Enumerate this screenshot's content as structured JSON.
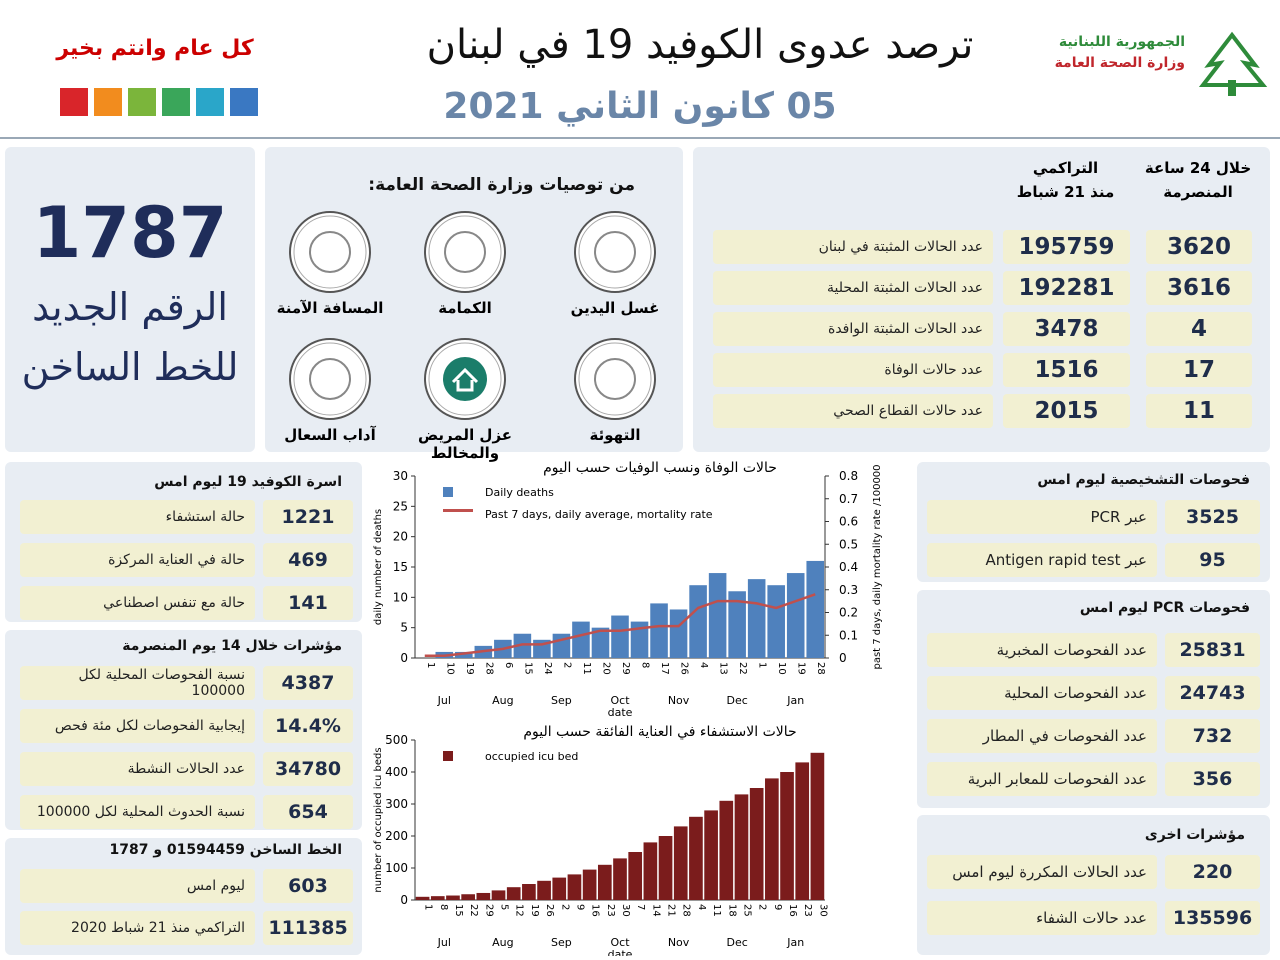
{
  "header": {
    "title": "ترصد عدوى الكوفيد 19 في لبنان",
    "date": "05 كانون الثاني 2021",
    "greeting": "كل عام وانتم بخير",
    "ministry_line1": "الجمهورية اللبنانية",
    "ministry_line2": "وزارة الصحة العامة"
  },
  "hotline": {
    "number": "1787",
    "label_line1": "الرقم الجديد",
    "label_line2": "للخط الساخن"
  },
  "recommendations": {
    "title": "من توصيات وزارة الصحة العامة:",
    "items": [
      "غسل اليدين",
      "الكمامة",
      "المسافة الآمنة",
      "التهوئة",
      "عزل المريض والمخالط",
      "آداب السعال"
    ]
  },
  "summary": {
    "col_24h_line1": "خلال 24 ساعة",
    "col_24h_line2": "المنصرمة",
    "col_cum_line1": "التراكمي",
    "col_cum_line2": "منذ 21 شباط",
    "rows": [
      {
        "label": "عدد الحالات المثبتة في لبنان",
        "cumulative": "195759",
        "daily": "3620"
      },
      {
        "label": "عدد الحالات المثبتة المحلية",
        "cumulative": "192281",
        "daily": "3616"
      },
      {
        "label": "عدد الحالات المثبتة الوافدة",
        "cumulative": "3478",
        "daily": "4"
      },
      {
        "label": "عدد حالات الوفاة",
        "cumulative": "1516",
        "daily": "17"
      },
      {
        "label": "عدد حالات القطاع الصحي",
        "cumulative": "2015",
        "daily": "11"
      }
    ]
  },
  "beds": {
    "title": "اسرة الكوفيد 19 ليوم امس",
    "rows": [
      {
        "label": "حالة استشفاء",
        "value": "1221"
      },
      {
        "label": "حالة في العناية المركزة",
        "value": "469"
      },
      {
        "label": "حالة مع تنفس اصطناعي",
        "value": "141"
      }
    ]
  },
  "indicators": {
    "title": "مؤشرات خلال 14 يوم المنصرمة",
    "rows": [
      {
        "label": "نسبة الفحوصات المحلية لكل 100000",
        "value": "4387"
      },
      {
        "label": "إيجابية الفحوصات لكل مئة فحص",
        "value": "14.4%"
      },
      {
        "label": "عدد الحالات النشطة",
        "value": "34780"
      },
      {
        "label": "نسبة الحدوث المحلية لكل 100000",
        "value": "654"
      }
    ]
  },
  "hotline_calls": {
    "title": "الخط الساخن 01594459 و 1787",
    "rows": [
      {
        "label": "ليوم امس",
        "value": "603"
      },
      {
        "label": "التراكمي منذ 21 شباط 2020",
        "value": "111385"
      }
    ]
  },
  "tests": {
    "title": "فحوصات التشخيصية ليوم امس",
    "rows": [
      {
        "label": "عبر PCR",
        "value": "3525"
      },
      {
        "label": "عبر Antigen rapid test",
        "value": "95"
      }
    ]
  },
  "pcr": {
    "title": "فحوصات PCR ليوم امس",
    "rows": [
      {
        "label": "عدد الفحوصات المخبرية",
        "value": "25831"
      },
      {
        "label": "عدد الفحوصات المحلية",
        "value": "24743"
      },
      {
        "label": "عدد الفحوصات في المطار",
        "value": "732"
      },
      {
        "label": "عدد الفحوصات للمعابر البرية",
        "value": "356"
      }
    ]
  },
  "other": {
    "title": "مؤشرات اخرى",
    "rows": [
      {
        "label": "عدد الحالات المكررة ليوم امس",
        "value": "220"
      },
      {
        "label": "عدد حالات الشفاء",
        "value": "135596"
      }
    ]
  },
  "chart_data": [
    {
      "type": "combo",
      "title": "حالات الوفاة ونسب الوفيات حسب اليوم",
      "x_label": "date",
      "y_label": "daily number of deaths",
      "y2_label": "past 7 days, daily mortality rate /100000",
      "categories": [
        "1",
        "10",
        "19",
        "28",
        "6",
        "15",
        "24",
        "2",
        "11",
        "20",
        "29",
        "8",
        "17",
        "26",
        "4",
        "13",
        "22",
        "1",
        "10",
        "19",
        "28"
      ],
      "months": [
        "Jul",
        "Aug",
        "Sep",
        "Oct",
        "Nov",
        "Dec",
        "Jan"
      ],
      "series": [
        {
          "name": "Daily deaths",
          "color": "#4f81bd",
          "values": [
            0,
            1,
            1,
            2,
            3,
            4,
            3,
            4,
            6,
            5,
            7,
            6,
            9,
            8,
            12,
            14,
            11,
            13,
            12,
            14,
            16
          ]
        },
        {
          "name": "Past 7 days, daily average, mortality rate",
          "color": "#c0504d",
          "axis": "y2",
          "values": [
            0.01,
            0.01,
            0.02,
            0.03,
            0.04,
            0.06,
            0.06,
            0.08,
            0.1,
            0.12,
            0.12,
            0.13,
            0.14,
            0.14,
            0.22,
            0.25,
            0.25,
            0.24,
            0.22,
            0.25,
            0.28
          ]
        }
      ],
      "ylim": [
        0,
        30
      ],
      "yticks": [
        0,
        5,
        10,
        15,
        20,
        25,
        30
      ],
      "y2lim": [
        0,
        0.8
      ],
      "y2ticks": [
        0,
        0.1,
        0.2,
        0.3,
        0.4,
        0.5,
        0.6,
        0.7,
        0.8
      ]
    },
    {
      "type": "bar",
      "title": "حالات الاستشفاء في العناية الفائقة حسب اليوم",
      "x_label": "date",
      "y_label": "number of occupied icu beds",
      "categories": [
        "1",
        "8",
        "15",
        "22",
        "29",
        "5",
        "12",
        "19",
        "26",
        "2",
        "9",
        "16",
        "23",
        "30",
        "7",
        "14",
        "21",
        "28",
        "4",
        "11",
        "18",
        "25",
        "2",
        "9",
        "16",
        "23",
        "30"
      ],
      "months": [
        "Jul",
        "Aug",
        "Sep",
        "Oct",
        "Nov",
        "Dec",
        "Jan"
      ],
      "series": [
        {
          "name": "occupied icu bed",
          "color": "#7b1c1c",
          "values": [
            10,
            12,
            14,
            18,
            22,
            30,
            40,
            50,
            60,
            70,
            80,
            95,
            110,
            130,
            150,
            180,
            200,
            230,
            260,
            280,
            310,
            330,
            350,
            380,
            400,
            430,
            460
          ]
        }
      ],
      "ylim": [
        0,
        500
      ],
      "yticks": [
        0,
        100,
        200,
        300,
        400,
        500
      ]
    }
  ]
}
